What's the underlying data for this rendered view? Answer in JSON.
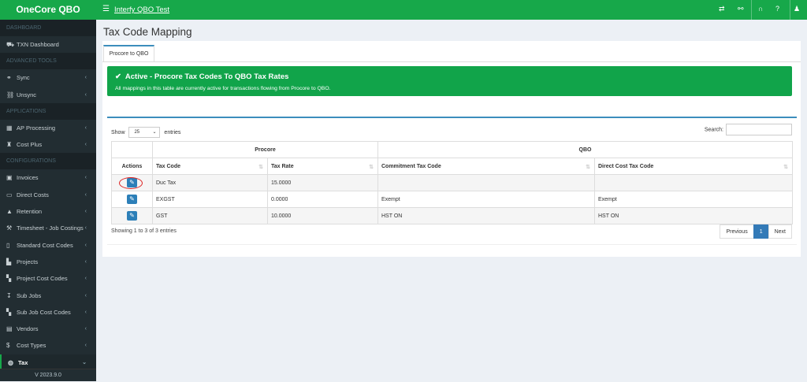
{
  "brand": "OneCore QBO",
  "version": "V 2023.9.0",
  "topbar": {
    "app_title": "Interfy QBO Test",
    "icons": [
      "transfer-icon",
      "share-icon",
      "headset-icon",
      "help-icon",
      "user-icon"
    ]
  },
  "sidebar": [
    {
      "type": "section",
      "label": "DASHBOARD"
    },
    {
      "type": "item",
      "label": "TXN Dashboard",
      "icon": "⛟",
      "chev": false
    },
    {
      "type": "section",
      "label": "ADVANCED TOOLS"
    },
    {
      "type": "item",
      "label": "Sync",
      "icon": "⚭",
      "chev": true
    },
    {
      "type": "item",
      "label": "Unsync",
      "icon": "⛓",
      "chev": true
    },
    {
      "type": "section",
      "label": "APPLICATIONS"
    },
    {
      "type": "item",
      "label": "AP Processing",
      "icon": "▦",
      "chev": true
    },
    {
      "type": "item",
      "label": "Cost Plus",
      "icon": "♜",
      "chev": true
    },
    {
      "type": "section",
      "label": "CONFIGURATIONS"
    },
    {
      "type": "item",
      "label": "Invoices",
      "icon": "▣",
      "chev": true
    },
    {
      "type": "item",
      "label": "Direct Costs",
      "icon": "▭",
      "chev": true
    },
    {
      "type": "item",
      "label": "Retention",
      "icon": "▲",
      "chev": true
    },
    {
      "type": "item",
      "label": "Timesheet - Job Costings",
      "icon": "⚒",
      "chev": true
    },
    {
      "type": "item",
      "label": "Standard Cost Codes",
      "icon": "▯",
      "chev": true
    },
    {
      "type": "item",
      "label": "Projects",
      "icon": "▙",
      "chev": true
    },
    {
      "type": "item",
      "label": "Project Cost Codes",
      "icon": "▚",
      "chev": true
    },
    {
      "type": "item",
      "label": "Sub Jobs",
      "icon": "↧",
      "chev": true
    },
    {
      "type": "item",
      "label": "Sub Job Cost Codes",
      "icon": "▚",
      "chev": true
    },
    {
      "type": "item",
      "label": "Vendors",
      "icon": "▤",
      "chev": true
    },
    {
      "type": "item",
      "label": "Cost Types",
      "icon": "$",
      "chev": true
    },
    {
      "type": "item",
      "label": "Tax",
      "icon": "◍",
      "chev": true,
      "active": true
    }
  ],
  "page": {
    "title": "Tax Code Mapping",
    "tab": "Procore to QBO",
    "alert": {
      "title": "Active - Procore Tax Codes To QBO Tax Rates",
      "text": "All mappings in this table are currently active for transactions flowing from Procore to QBO."
    },
    "show_label": "Show",
    "entries_label": "entries",
    "page_length": "25",
    "search_label": "Search:",
    "group_headers": [
      "Procore",
      "QBO"
    ],
    "columns": [
      "Actions",
      "Tax Code",
      "Tax Rate",
      "Commitment Tax Code",
      "Direct Cost Tax Code"
    ],
    "rows": [
      [
        "Duc Tax",
        "15.0000",
        "",
        ""
      ],
      [
        "EXGST",
        "0.0000",
        "Exempt",
        "Exempt"
      ],
      [
        "GST",
        "10.0000",
        "HST ON",
        "HST ON"
      ]
    ],
    "info": "Showing 1 to 3 of 3 entries",
    "pagination": {
      "previous": "Previous",
      "current": "1",
      "next": "Next"
    }
  },
  "colors": {
    "brand_green": "#17a84a",
    "sidebar": "#222d32",
    "accent_blue": "#3c8dbc"
  }
}
